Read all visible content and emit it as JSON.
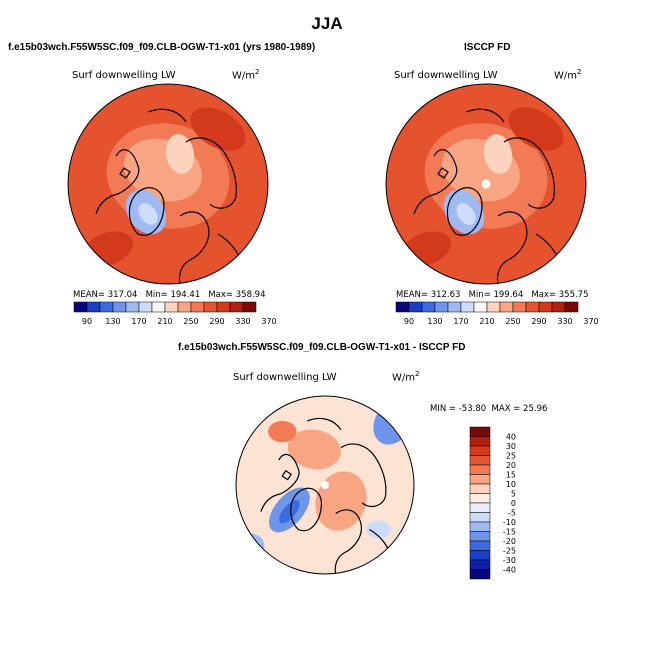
{
  "title": "JJA",
  "panels": [
    {
      "title": "f.e15b03wch.F55W5SC.f09_f09.CLB-OGW-T1-x01 (yrs 1980-1989)",
      "variable": "Surf downwelling LW",
      "units_base": "W/m",
      "units_exp": "2",
      "stats": {
        "mean_label": "MEAN=",
        "mean": "317.04",
        "min_label": "Min=",
        "min": "194.41",
        "max_label": "Max=",
        "max": "358.94"
      }
    },
    {
      "title": "ISCCP FD",
      "variable": "Surf downwelling LW",
      "units_base": "W/m",
      "units_exp": "2",
      "stats": {
        "mean_label": "MEAN=",
        "mean": "312.63",
        "min_label": "Min=",
        "min": "199.64",
        "max_label": "Max=",
        "max": "355.75"
      }
    },
    {
      "title": "f.e15b03wch.F55W5SC.f09_f09.CLB-OGW-T1-x01 - ISCCP FD",
      "variable": "Surf downwelling LW",
      "units_base": "W/m",
      "units_exp": "2",
      "stats": {
        "min_label": "MIN =",
        "min": "-53.80",
        "max_label": "MAX =",
        "max": "25.96"
      }
    }
  ],
  "colorbar_abs": {
    "labels": [
      "90",
      "130",
      "170",
      "210",
      "250",
      "290",
      "330",
      "370"
    ],
    "colors": [
      "#08087a",
      "#1a3fc4",
      "#3a6be0",
      "#6f95ea",
      "#9fb9f2",
      "#cddcf8",
      "#f7f7f7",
      "#fbd3be",
      "#f7a582",
      "#f27b55",
      "#e65531",
      "#d33a1c",
      "#b2200e",
      "#7a0a06"
    ]
  },
  "colorbar_diff": {
    "labels": [
      "40",
      "30",
      "25",
      "20",
      "15",
      "10",
      "5",
      "0",
      "-5",
      "-10",
      "-15",
      "-20",
      "-25",
      "-30",
      "-40"
    ],
    "colors": [
      "#7a0a06",
      "#b2200e",
      "#d33a1c",
      "#e65531",
      "#f27b55",
      "#f7a582",
      "#fbd3be",
      "#fdeee2",
      "#e8eefc",
      "#cddcf8",
      "#9fb9f2",
      "#6f95ea",
      "#3a6be0",
      "#1a3fc4",
      "#0c21a8",
      "#08087a"
    ]
  },
  "map_colors": {
    "base_abs": "#e4532d",
    "inner_abs": "#f27b55",
    "center_abs": "#f7a582",
    "cold_abs": "#9fb9f2",
    "base_diff": "#fde3d3",
    "warm_diff": "#f7a582",
    "cold_diff": "#6f95ea",
    "coast": "#000000"
  }
}
